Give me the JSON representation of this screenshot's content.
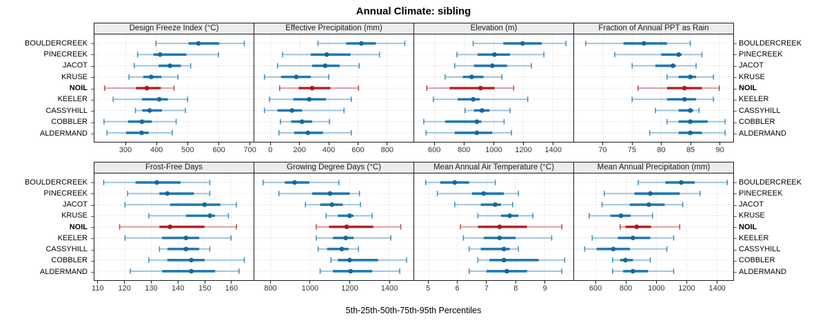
{
  "chart_data": {
    "type": "dot-whisker-percentile-trellis",
    "title": "Annual Climate: sibling",
    "xlabel": "5th-25th-50th-75th-95th Percentiles",
    "percentile_labels": [
      "5th",
      "25th",
      "50th",
      "75th",
      "95th"
    ],
    "legend_position": "none",
    "grid": "dotted",
    "sites": [
      "BOULDERCREEK",
      "PINECREEK",
      "JACOT",
      "KRUSE",
      "NOIL",
      "KEELER",
      "CASSYHILL",
      "COBBLER",
      "ALDERMAND"
    ],
    "highlight_site": "NOIL",
    "colors": {
      "normal": "#1f78b4",
      "normal_dot": "#18679e",
      "highlight": "#b92025",
      "highlight_dot": "#a81b20",
      "strip_bg": "#ececec",
      "panel_border": "#1a1a1a",
      "gridline": "#c9c9c9"
    },
    "panels": [
      {
        "label": "Design Freeze Index (°C)",
        "row": 0,
        "col": 0,
        "xlim": [
          198,
          714
        ],
        "ticks": [
          300,
          400,
          500,
          600,
          700
        ],
        "series": [
          {
            "site": "BOULDERCREEK",
            "percentiles": [
              397,
              503,
              535,
              603,
              684
            ]
          },
          {
            "site": "PINECREEK",
            "percentiles": [
              338,
              389,
              411,
              496,
              600
            ]
          },
          {
            "site": "JACOT",
            "percentiles": [
              327,
              406,
              443,
              478,
              510
            ]
          },
          {
            "site": "KRUSE",
            "percentiles": [
              310,
              356,
              382,
              415,
              469
            ]
          },
          {
            "site": "NOIL",
            "percentiles": [
              231,
              333,
              368,
              413,
              456
            ]
          },
          {
            "site": "KEELER",
            "percentiles": [
              259,
              352,
              408,
              436,
              500
            ]
          },
          {
            "site": "CASSYHILL",
            "percentiles": [
              331,
              353,
              377,
              417,
              493
            ]
          },
          {
            "site": "COBBLER",
            "percentiles": [
              229,
              307,
              352,
              384,
              463
            ]
          },
          {
            "site": "ALDERMAND",
            "percentiles": [
              239,
              301,
              351,
              374,
              450
            ]
          }
        ]
      },
      {
        "label": "Effective Precipitation (mm)",
        "row": 0,
        "col": 1,
        "xlim": [
          -115,
          985
        ],
        "ticks": [
          0,
          200,
          400,
          600,
          800
        ],
        "series": [
          {
            "site": "BOULDERCREEK",
            "percentiles": [
              325,
              520,
              625,
              725,
              925
            ]
          },
          {
            "site": "PINECREEK",
            "percentiles": [
              80,
              275,
              385,
              550,
              750
            ]
          },
          {
            "site": "JACOT",
            "percentiles": [
              45,
              285,
              375,
              475,
              610
            ]
          },
          {
            "site": "KRUSE",
            "percentiles": [
              -45,
              70,
              175,
              275,
              400
            ]
          },
          {
            "site": "NOIL",
            "percentiles": [
              60,
              190,
              285,
              410,
              605
            ]
          },
          {
            "site": "KEELER",
            "percentiles": [
              -10,
              155,
              265,
              380,
              555
            ]
          },
          {
            "site": "CASSYHILL",
            "percentiles": [
              -45,
              45,
              145,
              215,
              505
            ]
          },
          {
            "site": "COBBLER",
            "percentiles": [
              65,
              140,
              215,
              285,
              405
            ]
          },
          {
            "site": "ALDERMAND",
            "percentiles": [
              55,
              160,
              255,
              360,
              555
            ]
          }
        ]
      },
      {
        "label": "Elevation (m)",
        "row": 0,
        "col": 2,
        "xlim": [
          460,
          1540
        ],
        "ticks": [
          600,
          800,
          1000,
          1200,
          1400
        ],
        "series": [
          {
            "site": "BOULDERCREEK",
            "percentiles": [
              860,
              1065,
              1195,
              1325,
              1490
            ]
          },
          {
            "site": "PINECREEK",
            "percentiles": [
              750,
              890,
              1005,
              1110,
              1340
            ]
          },
          {
            "site": "JACOT",
            "percentiles": [
              735,
              865,
              990,
              1090,
              1255
            ]
          },
          {
            "site": "KRUSE",
            "percentiles": [
              670,
              790,
              850,
              930,
              1055
            ]
          },
          {
            "site": "NOIL",
            "percentiles": [
              545,
              700,
              910,
              1005,
              1135
            ]
          },
          {
            "site": "KEELER",
            "percentiles": [
              590,
              755,
              860,
              905,
              1230
            ]
          },
          {
            "site": "CASSYHILL",
            "percentiles": [
              805,
              865,
              920,
              970,
              1110
            ]
          },
          {
            "site": "COBBLER",
            "percentiles": [
              525,
              670,
              885,
              915,
              1070
            ]
          },
          {
            "site": "ALDERMAND",
            "percentiles": [
              540,
              735,
              885,
              990,
              1120
            ]
          }
        ]
      },
      {
        "label": "Fraction of Annual PPT as Rain",
        "row": 0,
        "col": 3,
        "xlim": [
          65,
          92.4
        ],
        "ticks": [
          70,
          75,
          80,
          85,
          90
        ],
        "series": [
          {
            "site": "BOULDERCREEK",
            "percentiles": [
              67,
              73.5,
              77,
              81,
              85
            ]
          },
          {
            "site": "PINECREEK",
            "percentiles": [
              72,
              80,
              83,
              83.5,
              87
            ]
          },
          {
            "site": "JACOT",
            "percentiles": [
              75,
              79,
              82,
              82.5,
              86
            ]
          },
          {
            "site": "KRUSE",
            "percentiles": [
              81,
              83,
              85,
              86,
              89
            ]
          },
          {
            "site": "NOIL",
            "percentiles": [
              76,
              81,
              84,
              87,
              90
            ]
          },
          {
            "site": "KEELER",
            "percentiles": [
              75,
              81,
              84,
              86,
              89
            ]
          },
          {
            "site": "CASSYHILL",
            "percentiles": [
              79,
              83,
              85,
              85.5,
              86.5
            ]
          },
          {
            "site": "COBBLER",
            "percentiles": [
              81,
              83,
              85,
              88,
              91
            ]
          },
          {
            "site": "ALDERMAND",
            "percentiles": [
              78,
              83,
              85,
              87,
              91
            ]
          }
        ]
      },
      {
        "label": "Frost-Free Days",
        "row": 1,
        "col": 0,
        "xlim": [
          108.5,
          168.5
        ],
        "ticks": [
          110,
          120,
          130,
          140,
          150,
          160
        ],
        "series": [
          {
            "site": "BOULDERCREEK",
            "percentiles": [
              112,
              124,
              132,
              141,
              152
            ]
          },
          {
            "site": "PINECREEK",
            "percentiles": [
              121,
              133,
              136,
              146,
              152
            ]
          },
          {
            "site": "JACOT",
            "percentiles": [
              120,
              137,
              150,
              156,
              162
            ]
          },
          {
            "site": "KRUSE",
            "percentiles": [
              129,
              143,
              152,
              154,
              159
            ]
          },
          {
            "site": "NOIL",
            "percentiles": [
              118,
              133,
              137,
              150,
              162
            ]
          },
          {
            "site": "KEELER",
            "percentiles": [
              120,
              134,
              143,
              148,
              160
            ]
          },
          {
            "site": "CASSYHILL",
            "percentiles": [
              133,
              136,
              143,
              148,
              152
            ]
          },
          {
            "site": "COBBLER",
            "percentiles": [
              129,
              136,
              145,
              150,
              165
            ]
          },
          {
            "site": "ALDERMAND",
            "percentiles": [
              122,
              134,
              145,
              154,
              163
            ]
          }
        ]
      },
      {
        "label": "Growing Degree Days (°C)",
        "row": 1,
        "col": 1,
        "xlim": [
          715,
          1525
        ],
        "ticks": [
          800,
          1000,
          1200,
          1400
        ],
        "series": [
          {
            "site": "BOULDERCREEK",
            "percentiles": [
              760,
              870,
              920,
              995,
              1145
            ]
          },
          {
            "site": "PINECREEK",
            "percentiles": [
              840,
              1010,
              1100,
              1200,
              1250
            ]
          },
          {
            "site": "JACOT",
            "percentiles": [
              975,
              1050,
              1110,
              1165,
              1255
            ]
          },
          {
            "site": "KRUSE",
            "percentiles": [
              1080,
              1140,
              1200,
              1220,
              1315
            ]
          },
          {
            "site": "NOIL",
            "percentiles": [
              1030,
              1095,
              1185,
              1320,
              1460
            ]
          },
          {
            "site": "KEELER",
            "percentiles": [
              1030,
              1115,
              1180,
              1220,
              1410
            ]
          },
          {
            "site": "CASSYHILL",
            "percentiles": [
              1040,
              1085,
              1160,
              1195,
              1245
            ]
          },
          {
            "site": "COBBLER",
            "percentiles": [
              1105,
              1140,
              1200,
              1345,
              1490
            ]
          },
          {
            "site": "ALDERMAND",
            "percentiles": [
              1050,
              1115,
              1205,
              1315,
              1455
            ]
          }
        ]
      },
      {
        "label": "Mean Annual Air Temperature (°C)",
        "row": 1,
        "col": 2,
        "xlim": [
          4.5,
          10
        ],
        "ticks": [
          5,
          6,
          7,
          8,
          9
        ],
        "series": [
          {
            "site": "BOULDERCREEK",
            "percentiles": [
              4.9,
              5.4,
              5.9,
              6.4,
              7.3
            ]
          },
          {
            "site": "PINECREEK",
            "percentiles": [
              5.3,
              6.5,
              6.9,
              7.6,
              8.1
            ]
          },
          {
            "site": "JACOT",
            "percentiles": [
              5.9,
              6.8,
              7.3,
              7.5,
              7.9
            ]
          },
          {
            "site": "KRUSE",
            "percentiles": [
              6.7,
              7.5,
              7.8,
              8.1,
              8.6
            ]
          },
          {
            "site": "NOIL",
            "percentiles": [
              6.1,
              6.7,
              7.45,
              8.4,
              9.6
            ]
          },
          {
            "site": "KEELER",
            "percentiles": [
              6.2,
              6.9,
              7.45,
              8.0,
              9.25
            ]
          },
          {
            "site": "CASSYHILL",
            "percentiles": [
              6.4,
              6.8,
              7.6,
              7.8,
              8.1
            ]
          },
          {
            "site": "COBBLER",
            "percentiles": [
              6.7,
              7.1,
              7.6,
              8.8,
              9.7
            ]
          },
          {
            "site": "ALDERMAND",
            "percentiles": [
              6.4,
              7.0,
              7.7,
              8.4,
              9.6
            ]
          }
        ]
      },
      {
        "label": "Mean Annual Precipitation (mm)",
        "row": 1,
        "col": 3,
        "xlim": [
          455,
          1510
        ],
        "ticks": [
          600,
          800,
          1000,
          1200,
          1400
        ],
        "series": [
          {
            "site": "BOULDERCREEK",
            "percentiles": [
              880,
              1060,
              1165,
              1255,
              1470
            ]
          },
          {
            "site": "PINECREEK",
            "percentiles": [
              655,
              855,
              960,
              1155,
              1290
            ]
          },
          {
            "site": "JACOT",
            "percentiles": [
              640,
              825,
              950,
              1055,
              1175
            ]
          },
          {
            "site": "KRUSE",
            "percentiles": [
              555,
              695,
              765,
              830,
              975
            ]
          },
          {
            "site": "NOIL",
            "percentiles": [
              760,
              795,
              870,
              965,
              1155
            ]
          },
          {
            "site": "KEELER",
            "percentiles": [
              575,
              745,
              845,
              960,
              1115
            ]
          },
          {
            "site": "CASSYHILL",
            "percentiles": [
              525,
              605,
              715,
              825,
              1070
            ]
          },
          {
            "site": "COBBLER",
            "percentiles": [
              710,
              760,
              795,
              845,
              960
            ]
          },
          {
            "site": "ALDERMAND",
            "percentiles": [
              710,
              780,
              845,
              945,
              1115
            ]
          }
        ]
      }
    ]
  }
}
